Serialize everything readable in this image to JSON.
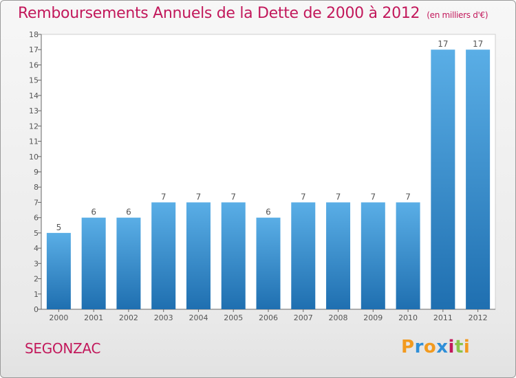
{
  "title": "Remboursements Annuels de la Dette de 2000 à 2012",
  "subtitle": "(en milliers d'€)",
  "commune": "SEGONZAC",
  "logo": {
    "text": "Proxiti",
    "letters": [
      {
        "ch": "P",
        "color": "#f29a1f"
      },
      {
        "ch": "r",
        "color": "#2f8fd8"
      },
      {
        "ch": "o",
        "color": "#f29a1f"
      },
      {
        "ch": "x",
        "color": "#2f8fd8"
      },
      {
        "ch": "i",
        "color": "#c2185b"
      },
      {
        "ch": "t",
        "color": "#8bc34a"
      },
      {
        "ch": "i",
        "color": "#f29a1f"
      }
    ]
  },
  "colors": {
    "bar_top": "#5aaee6",
    "bar_bottom": "#1f6fb0",
    "title": "#c2185b"
  },
  "chart_data": {
    "type": "bar",
    "title": "Remboursements Annuels de la Dette de 2000 à 2012",
    "unit": "(en milliers d'€)",
    "categories": [
      "2000",
      "2001",
      "2002",
      "2003",
      "2004",
      "2005",
      "2006",
      "2007",
      "2008",
      "2009",
      "2010",
      "2011",
      "2012"
    ],
    "values": [
      5,
      6,
      6,
      7,
      7,
      7,
      6,
      7,
      7,
      7,
      7,
      17,
      17
    ],
    "ylim": [
      0,
      18
    ],
    "yticks": [
      0,
      1,
      2,
      3,
      4,
      5,
      6,
      7,
      8,
      9,
      10,
      11,
      12,
      13,
      14,
      15,
      16,
      17,
      18
    ],
    "grid": false,
    "data_labels": true
  }
}
